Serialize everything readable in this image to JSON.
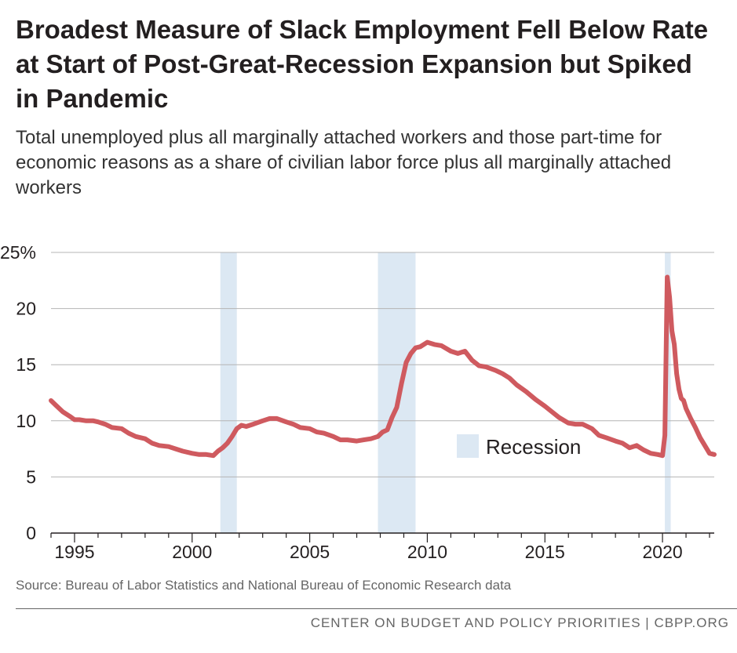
{
  "title": "Broadest Measure of Slack Employment Fell Below Rate at Start of Post-Great-Recession Expansion but Spiked in Pandemic",
  "subtitle": "Total unemployed plus all marginally attached workers and those part-time for economic reasons as a share of civilian labor force plus all marginally attached workers",
  "source": "Source: Bureau of Labor Statistics and National Bureau of Economic Research data",
  "footer": "CENTER ON BUDGET AND POLICY PRIORITIES | CBPP.ORG",
  "colors": {
    "line": "#cf5a5f",
    "recession": "#dce8f3",
    "grid": "#b4b4b4",
    "axis": "#231f20"
  },
  "chart_data": {
    "type": "line",
    "title": "",
    "xlabel": "",
    "ylabel": "",
    "xlim": [
      1994.0,
      2022.2
    ],
    "ylim": [
      0,
      25
    ],
    "grid": true,
    "x_ticks": [
      1995,
      2000,
      2005,
      2010,
      2015,
      2020
    ],
    "y_ticks": [
      {
        "value": 0,
        "label": "0"
      },
      {
        "value": 5,
        "label": "5"
      },
      {
        "value": 10,
        "label": "10"
      },
      {
        "value": 15,
        "label": "15"
      },
      {
        "value": 20,
        "label": "20"
      },
      {
        "value": 25,
        "label": "25%"
      }
    ],
    "legend": {
      "label": "Recession",
      "position": "center-right"
    },
    "recessions": [
      {
        "start": 2001.2,
        "end": 2001.9
      },
      {
        "start": 2007.9,
        "end": 2009.5
      },
      {
        "start": 2020.1,
        "end": 2020.35
      }
    ],
    "series": [
      {
        "x": [
          1994.0,
          1994.2,
          1994.5,
          1994.8,
          1995.0,
          1995.2,
          1995.5,
          1995.8,
          1996.0,
          1996.3,
          1996.6,
          1997.0,
          1997.3,
          1997.6,
          1998.0,
          1998.3,
          1998.6,
          1999.0,
          1999.3,
          1999.6,
          2000.0,
          2000.3,
          2000.6,
          2000.9,
          2001.1,
          2001.3,
          2001.5,
          2001.7,
          2001.9,
          2002.1,
          2002.3,
          2002.6,
          2003.0,
          2003.3,
          2003.6,
          2004.0,
          2004.3,
          2004.6,
          2005.0,
          2005.3,
          2005.6,
          2006.0,
          2006.3,
          2006.6,
          2007.0,
          2007.3,
          2007.6,
          2007.9,
          2008.1,
          2008.3,
          2008.5,
          2008.7,
          2008.9,
          2009.1,
          2009.3,
          2009.5,
          2009.7,
          2010.0,
          2010.3,
          2010.6,
          2011.0,
          2011.3,
          2011.6,
          2011.9,
          2012.2,
          2012.5,
          2012.9,
          2013.2,
          2013.5,
          2013.8,
          2014.2,
          2014.6,
          2015.0,
          2015.3,
          2015.6,
          2016.0,
          2016.3,
          2016.6,
          2017.0,
          2017.3,
          2017.6,
          2018.0,
          2018.3,
          2018.6,
          2018.9,
          2019.2,
          2019.5,
          2019.8,
          2020.0,
          2020.1,
          2020.2,
          2020.3,
          2020.4,
          2020.5,
          2020.6,
          2020.7,
          2020.8,
          2020.9,
          2021.0,
          2021.2,
          2021.4,
          2021.6,
          2021.8,
          2022.0,
          2022.2
        ],
        "values": [
          11.8,
          11.4,
          10.8,
          10.4,
          10.1,
          10.1,
          10.0,
          10.0,
          9.9,
          9.7,
          9.4,
          9.3,
          8.9,
          8.6,
          8.4,
          8.0,
          7.8,
          7.7,
          7.5,
          7.3,
          7.1,
          7.0,
          7.0,
          6.9,
          7.3,
          7.6,
          8.0,
          8.6,
          9.3,
          9.6,
          9.5,
          9.7,
          10.0,
          10.2,
          10.2,
          9.9,
          9.7,
          9.4,
          9.3,
          9.0,
          8.9,
          8.6,
          8.3,
          8.3,
          8.2,
          8.3,
          8.4,
          8.6,
          9.0,
          9.2,
          10.3,
          11.2,
          13.3,
          15.2,
          16.0,
          16.5,
          16.6,
          17.0,
          16.8,
          16.7,
          16.2,
          16.0,
          16.2,
          15.4,
          14.9,
          14.8,
          14.5,
          14.2,
          13.8,
          13.2,
          12.6,
          11.9,
          11.3,
          10.8,
          10.3,
          9.8,
          9.7,
          9.7,
          9.3,
          8.7,
          8.5,
          8.2,
          8.0,
          7.6,
          7.8,
          7.4,
          7.1,
          7.0,
          6.9,
          8.7,
          22.8,
          21.0,
          18.0,
          16.8,
          14.2,
          12.8,
          12.0,
          11.8,
          11.1,
          10.2,
          9.4,
          8.5,
          7.8,
          7.1,
          7.0
        ]
      }
    ]
  }
}
